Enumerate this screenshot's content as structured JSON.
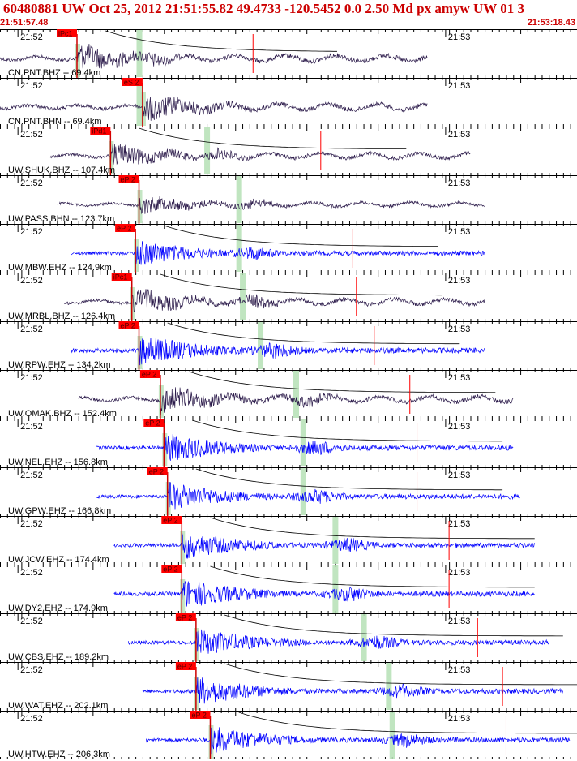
{
  "header": {
    "title": "60480881 UW Oct 25, 2012 21:51:55.82   49.4733 -120.5452  0.0 2.50 Md px amyw UW 01   3",
    "start_time": "21:51:57.48",
    "end_time": "21:53:18.43"
  },
  "colors": {
    "title": "#cc0000",
    "trace_broadband": "#2b1a4a",
    "trace_short_period": "#0000ff",
    "pick_box": "#ff0000",
    "pick_line": "#cc0000",
    "s_window": "#b5e0b5",
    "coda_curve": "#000000",
    "axis": "#000000"
  },
  "chart_data": {
    "type": "line",
    "title": "60480881 UW Oct 25, 2012 21:51:55.82   49.4733 -120.5452  0.0 2.50 Md px amyw UW 01   3",
    "time_start": "21:51:57.48",
    "time_end": "21:53:18.43",
    "xlim_seconds": [
      0,
      80.95
    ],
    "minute_labels": [
      {
        "label": "21:52",
        "t": 2.52
      },
      {
        "label": "21:53",
        "t": 62.52
      }
    ],
    "traces": [
      {
        "label": "CN.PNT.BHZ -- 69.4km",
        "station": "CN.PNT.BHZ",
        "distance_km": 69.4,
        "pick": "iPc1",
        "pick_t": 10.8,
        "s_t": 19.5,
        "data_start": 0.0,
        "data_end": 60.0,
        "amplitude": 0.9,
        "kind": "broadband",
        "coda": true
      },
      {
        "label": "CN.PNT.BHN -- 69.4km",
        "station": "CN.PNT.BHN",
        "distance_km": 69.4,
        "pick": "eS 2",
        "pick_t": 20.0,
        "s_t": 19.5,
        "data_start": 0.0,
        "data_end": 60.0,
        "amplitude": 0.9,
        "kind": "broadband",
        "coda": false
      },
      {
        "label": "UW.SHUK.BHZ -- 107.4km",
        "station": "UW.SHUK.BHZ",
        "distance_km": 107.4,
        "pick": "iPd1",
        "pick_t": 15.5,
        "s_t": 29.0,
        "data_start": 7.0,
        "data_end": 66.0,
        "amplitude": 0.75,
        "kind": "broadband",
        "coda": true
      },
      {
        "label": "UW.PASS.BHN -- 123.7km",
        "station": "UW.PASS.BHN",
        "distance_km": 123.7,
        "pick": "eP 2",
        "pick_t": 19.5,
        "s_t": 33.5,
        "data_start": 8.0,
        "data_end": 68.0,
        "amplitude": 0.6,
        "kind": "broadband",
        "coda": false
      },
      {
        "label": "UW.MBW.EHZ -- 124.9km",
        "station": "UW.MBW.EHZ",
        "distance_km": 124.9,
        "pick": "eP 2",
        "pick_t": 19.0,
        "s_t": 33.5,
        "data_start": 10.0,
        "data_end": 68.0,
        "amplitude": 0.8,
        "kind": "short_period",
        "coda": true
      },
      {
        "label": "UW.MRBL.BHZ -- 126.4km",
        "station": "UW.MRBL.BHZ",
        "distance_km": 126.4,
        "pick": "iPc1",
        "pick_t": 18.5,
        "s_t": 34.0,
        "data_start": 9.0,
        "data_end": 68.0,
        "amplitude": 0.8,
        "kind": "broadband",
        "coda": true
      },
      {
        "label": "UW.RPW.EHZ -- 134.2km",
        "station": "UW.RPW.EHZ",
        "distance_km": 134.2,
        "pick": "eP 2",
        "pick_t": 19.5,
        "s_t": 36.5,
        "data_start": 10.0,
        "data_end": 68.0,
        "amplitude": 0.95,
        "kind": "short_period",
        "coda": true
      },
      {
        "label": "UW.OMAK.BHZ -- 152.4km",
        "station": "UW.OMAK.BHZ",
        "distance_km": 152.4,
        "pick": "eP 2",
        "pick_t": 22.5,
        "s_t": 41.5,
        "data_start": 11.0,
        "data_end": 72.0,
        "amplitude": 0.85,
        "kind": "broadband",
        "coda": true
      },
      {
        "label": "UW.NEL.EHZ -- 156.8km",
        "station": "UW.NEL.EHZ",
        "distance_km": 156.8,
        "pick": "eP 2",
        "pick_t": 23.0,
        "s_t": 42.5,
        "data_start": 13.5,
        "data_end": 72.0,
        "amplitude": 0.9,
        "kind": "short_period",
        "coda": true
      },
      {
        "label": "UW.GPW.EHZ -- 166.8km",
        "station": "UW.GPW.EHZ",
        "distance_km": 166.8,
        "pick": "eP 2",
        "pick_t": 23.5,
        "s_t": 42.5,
        "data_start": 13.5,
        "data_end": 73.0,
        "amplitude": 0.85,
        "kind": "short_period",
        "coda": true
      },
      {
        "label": "UW.JCW.EHZ -- 174.4km",
        "station": "UW.JCW.EHZ",
        "distance_km": 174.4,
        "pick": "eP 2",
        "pick_t": 25.5,
        "s_t": 47.0,
        "data_start": 16.0,
        "data_end": 75.0,
        "amplitude": 0.85,
        "kind": "short_period",
        "coda": true
      },
      {
        "label": "UW.DY2.EHZ -- 174.9km",
        "station": "UW.DY2.EHZ",
        "distance_km": 174.9,
        "pick": "eP 2",
        "pick_t": 25.5,
        "s_t": 47.0,
        "data_start": 16.0,
        "data_end": 75.0,
        "amplitude": 0.9,
        "kind": "short_period",
        "coda": true
      },
      {
        "label": "UW.CBS.EHZ -- 189.2km",
        "station": "UW.CBS.EHZ",
        "distance_km": 189.2,
        "pick": "eP 2",
        "pick_t": 27.5,
        "s_t": 51.0,
        "data_start": 18.0,
        "data_end": 77.0,
        "amplitude": 0.85,
        "kind": "short_period",
        "coda": true
      },
      {
        "label": "UW.WAT.EHZ -- 202.1km",
        "station": "UW.WAT.EHZ",
        "distance_km": 202.1,
        "pick": "eP 2",
        "pick_t": 27.5,
        "s_t": 54.5,
        "data_start": 20.0,
        "data_end": 79.0,
        "amplitude": 0.85,
        "kind": "short_period",
        "coda": true
      },
      {
        "label": "UW.HTW.EHZ -- 206.3km",
        "station": "UW.HTW.EHZ",
        "distance_km": 206.3,
        "pick": "eP 2",
        "pick_t": 29.5,
        "s_t": 55.0,
        "data_start": 20.5,
        "data_end": 80.0,
        "amplitude": 0.85,
        "kind": "short_period",
        "coda": true
      }
    ]
  }
}
